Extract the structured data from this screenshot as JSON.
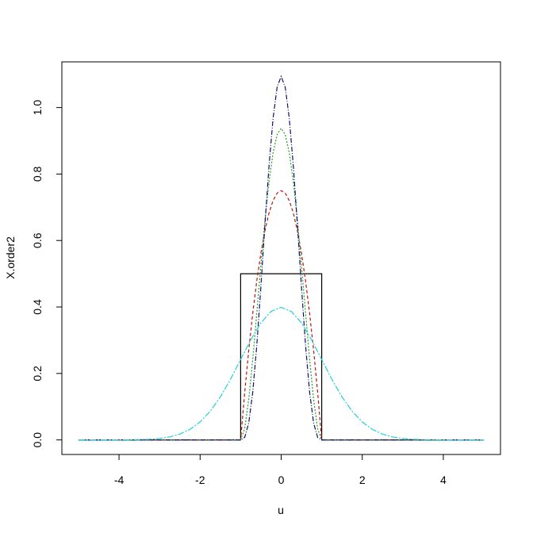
{
  "chart_data": {
    "type": "line",
    "xlabel": "u",
    "ylabel": "X.order2",
    "xlim": [
      -5.41,
      5.41
    ],
    "ylim": [
      -0.0438,
      1.1375
    ],
    "xticks": [
      -4,
      -2,
      0,
      2,
      4
    ],
    "yticks": [
      {
        "value": 0,
        "label": "0.0"
      },
      0.2,
      0.4,
      0.6,
      0.8,
      {
        "value": 1,
        "label": "1.0"
      }
    ],
    "series": [
      {
        "color": "#000000",
        "dash": "none",
        "x": [
          -5,
          -1,
          -1,
          1,
          1,
          5
        ],
        "values": [
          0,
          0,
          0.5,
          0.5,
          0,
          0
        ]
      },
      {
        "color": "#c01010",
        "dash": "4 3",
        "x": [
          -5,
          -1,
          -0.9,
          -0.8,
          -0.7,
          -0.6,
          -0.5,
          -0.4,
          -0.3,
          -0.2,
          -0.1,
          0,
          0.1,
          0.2,
          0.3,
          0.4,
          0.5,
          0.6,
          0.7,
          0.8,
          0.9,
          1,
          5
        ],
        "values": [
          0,
          0,
          0.1425,
          0.27,
          0.3825,
          0.48,
          0.5625,
          0.63,
          0.6825,
          0.72,
          0.7425,
          0.75,
          0.7425,
          0.72,
          0.6825,
          0.63,
          0.5625,
          0.48,
          0.3825,
          0.27,
          0.1425,
          0,
          0
        ]
      },
      {
        "color": "#22a022",
        "dash": "2 2",
        "x": [
          -5,
          -1,
          -0.9,
          -0.8,
          -0.7,
          -0.6,
          -0.5,
          -0.4,
          -0.3,
          -0.2,
          -0.1,
          0,
          0.1,
          0.2,
          0.3,
          0.4,
          0.5,
          0.6,
          0.7,
          0.8,
          0.9,
          1,
          5
        ],
        "values": [
          0,
          0,
          0.0338,
          0.1215,
          0.2438,
          0.384,
          0.5273,
          0.6615,
          0.7763,
          0.864,
          0.9188,
          0.9375,
          0.9188,
          0.864,
          0.7763,
          0.6615,
          0.5273,
          0.384,
          0.2438,
          0.1215,
          0.0338,
          0,
          0
        ]
      },
      {
        "color": "#101070",
        "dash": "6 2 1 2",
        "x": [
          -5,
          -1,
          -0.9,
          -0.8,
          -0.7,
          -0.6,
          -0.5,
          -0.4,
          -0.3,
          -0.2,
          -0.1,
          0,
          0.1,
          0.2,
          0.3,
          0.4,
          0.5,
          0.6,
          0.7,
          0.8,
          0.9,
          1,
          5
        ],
        "values": [
          0,
          0,
          0.0075,
          0.051,
          0.1451,
          0.2867,
          0.4614,
          0.6483,
          0.8242,
          0.9677,
          1.0613,
          1.0938,
          1.0613,
          0.9677,
          0.8242,
          0.6483,
          0.4614,
          0.2867,
          0.1451,
          0.051,
          0.0075,
          0,
          0
        ]
      },
      {
        "color": "#20d0d8",
        "dash": "8 2 2 2",
        "x": [
          -5,
          -4.75,
          -4.5,
          -4.25,
          -4,
          -3.75,
          -3.5,
          -3.25,
          -3,
          -2.75,
          -2.5,
          -2.25,
          -2,
          -1.75,
          -1.5,
          -1.25,
          -1,
          -0.75,
          -0.5,
          -0.25,
          0,
          0.25,
          0.5,
          0.75,
          1,
          1.25,
          1.5,
          1.75,
          2,
          2.25,
          2.5,
          2.75,
          3,
          3.25,
          3.5,
          3.75,
          4,
          4.25,
          4.5,
          4.75,
          5
        ],
        "values": [
          0,
          0,
          0,
          0,
          0.0001,
          0.0004,
          0.0009,
          0.002,
          0.0044,
          0.0091,
          0.0175,
          0.0317,
          0.054,
          0.0863,
          0.1295,
          0.1826,
          0.242,
          0.3011,
          0.3521,
          0.3867,
          0.3989,
          0.3867,
          0.3521,
          0.3011,
          0.242,
          0.1826,
          0.1295,
          0.0863,
          0.054,
          0.0317,
          0.0175,
          0.0091,
          0.0044,
          0.002,
          0.0009,
          0.0004,
          0.0001,
          0,
          0,
          0,
          0
        ]
      }
    ]
  }
}
